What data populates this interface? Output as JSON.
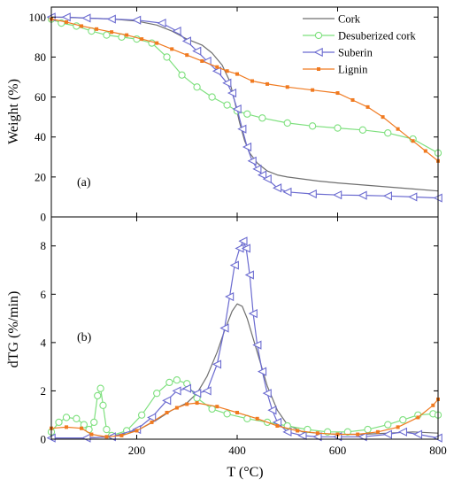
{
  "chart_data": [
    {
      "type": "line",
      "panel_label": "(a)",
      "ylabel": "Weight (%)",
      "xlim": [
        30,
        800
      ],
      "ylim": [
        0,
        105
      ],
      "yticks": [
        0,
        20,
        40,
        60,
        80,
        100
      ],
      "ytick_labels": [
        "0",
        "20",
        "40",
        "60",
        "80",
        "100"
      ],
      "legend_position": "top-right",
      "series": [
        {
          "name": "Cork",
          "color": "#6f6f6f",
          "marker": "none",
          "x": [
            30,
            60,
            100,
            150,
            200,
            240,
            270,
            300,
            330,
            350,
            370,
            385,
            395,
            405,
            415,
            425,
            440,
            460,
            480,
            500,
            530,
            560,
            600,
            650,
            700,
            750,
            800
          ],
          "y": [
            100,
            99.8,
            99.5,
            99,
            98,
            96,
            93,
            89,
            86,
            82,
            76,
            68,
            58,
            47,
            38,
            32,
            27,
            23,
            21,
            20,
            19,
            18,
            17,
            16,
            15,
            14,
            13
          ]
        },
        {
          "name": "Desuberized cork",
          "color": "#7ee07e",
          "marker": "circle",
          "x": [
            30,
            50,
            80,
            110,
            140,
            170,
            200,
            230,
            260,
            290,
            320,
            350,
            380,
            400,
            420,
            450,
            500,
            550,
            600,
            650,
            700,
            750,
            800
          ],
          "y": [
            99,
            97,
            95.5,
            93,
            91,
            90,
            89,
            87,
            80,
            71,
            65,
            60,
            56,
            53,
            51.5,
            49.5,
            47,
            45.5,
            44.5,
            43.5,
            42,
            39,
            32
          ]
        },
        {
          "name": "Suberin",
          "color": "#6b6bd0",
          "marker": "triangle-left",
          "x": [
            30,
            60,
            100,
            150,
            200,
            250,
            280,
            300,
            320,
            340,
            360,
            380,
            390,
            400,
            410,
            420,
            430,
            440,
            450,
            460,
            480,
            500,
            550,
            600,
            650,
            700,
            750,
            800
          ],
          "y": [
            100,
            100,
            99.5,
            99,
            98.5,
            97,
            93,
            88,
            83,
            78,
            73,
            67,
            62,
            54,
            44,
            35,
            28,
            24,
            21,
            19,
            14.5,
            12.5,
            11.5,
            11,
            10.8,
            10.5,
            10,
            9.5
          ]
        },
        {
          "name": "Lignin",
          "color": "#f07a20",
          "marker": "square",
          "x": [
            30,
            60,
            90,
            120,
            150,
            180,
            210,
            240,
            270,
            300,
            330,
            360,
            380,
            400,
            430,
            460,
            500,
            550,
            600,
            630,
            660,
            690,
            720,
            750,
            775,
            800
          ],
          "y": [
            99,
            97.5,
            95.5,
            94,
            92.5,
            91,
            89,
            87,
            84,
            81,
            78,
            75,
            73,
            71.5,
            68,
            66.5,
            65,
            63.5,
            62,
            58.5,
            55,
            50,
            44,
            38,
            33,
            28
          ]
        }
      ]
    },
    {
      "type": "line",
      "panel_label": "(b)",
      "xlabel": "T (°C)",
      "ylabel": "dTG (%/min)",
      "xlim": [
        30,
        800
      ],
      "ylim": [
        0,
        9.2
      ],
      "xticks": [
        200,
        400,
        600,
        800
      ],
      "xtick_labels": [
        "200",
        "400",
        "600",
        "800"
      ],
      "yticks": [
        0,
        2,
        4,
        6,
        8
      ],
      "ytick_labels": [
        "0",
        "2",
        "4",
        "6",
        "8"
      ],
      "series": [
        {
          "name": "Cork",
          "color": "#6f6f6f",
          "marker": "none",
          "x": [
            30,
            100,
            150,
            200,
            240,
            270,
            300,
            320,
            340,
            360,
            375,
            390,
            400,
            410,
            420,
            430,
            440,
            450,
            460,
            480,
            500,
            530,
            560,
            600,
            650,
            700,
            750,
            800
          ],
          "y": [
            0.05,
            0.05,
            0.1,
            0.35,
            0.8,
            1.2,
            1.5,
            1.9,
            2.6,
            3.6,
            4.5,
            5.3,
            5.6,
            5.5,
            5.0,
            4.3,
            3.6,
            2.9,
            2.2,
            1.2,
            0.6,
            0.3,
            0.25,
            0.2,
            0.2,
            0.25,
            0.3,
            0.25
          ]
        },
        {
          "name": "Desuberized cork",
          "color": "#7ee07e",
          "marker": "circle",
          "x": [
            30,
            45,
            60,
            80,
            95,
            105,
            115,
            122,
            128,
            133,
            140,
            150,
            180,
            210,
            240,
            265,
            280,
            300,
            320,
            350,
            380,
            420,
            460,
            500,
            540,
            580,
            620,
            660,
            700,
            730,
            760,
            790,
            800
          ],
          "y": [
            0.3,
            0.7,
            0.9,
            0.85,
            0.6,
            0.4,
            0.7,
            1.8,
            2.1,
            1.4,
            0.4,
            0.15,
            0.35,
            1.0,
            1.9,
            2.35,
            2.45,
            2.3,
            1.7,
            1.25,
            1.05,
            0.85,
            0.7,
            0.55,
            0.4,
            0.3,
            0.3,
            0.4,
            0.6,
            0.8,
            1.0,
            1.05,
            1.0
          ]
        },
        {
          "name": "Suberin",
          "color": "#6b6bd0",
          "marker": "triangle-left",
          "x": [
            30,
            100,
            150,
            200,
            230,
            260,
            280,
            300,
            320,
            340,
            360,
            375,
            385,
            395,
            405,
            412,
            418,
            425,
            432,
            440,
            450,
            460,
            470,
            480,
            500,
            530,
            560,
            600,
            650,
            700,
            730,
            760,
            800
          ],
          "y": [
            0.05,
            0.05,
            0.1,
            0.4,
            0.9,
            1.6,
            2.0,
            2.1,
            1.9,
            2.0,
            3.1,
            4.6,
            5.9,
            7.2,
            7.9,
            8.2,
            7.9,
            6.8,
            5.2,
            3.9,
            2.8,
            1.9,
            1.2,
            0.7,
            0.3,
            0.15,
            0.1,
            0.1,
            0.1,
            0.2,
            0.3,
            0.2,
            0.05
          ]
        },
        {
          "name": "Lignin",
          "color": "#f07a20",
          "marker": "square",
          "x": [
            30,
            60,
            90,
            110,
            140,
            170,
            200,
            230,
            260,
            280,
            300,
            320,
            360,
            400,
            440,
            480,
            520,
            560,
            600,
            640,
            680,
            720,
            760,
            790,
            800
          ],
          "y": [
            0.45,
            0.5,
            0.45,
            0.2,
            0.1,
            0.15,
            0.35,
            0.7,
            1.1,
            1.3,
            1.45,
            1.5,
            1.35,
            1.1,
            0.85,
            0.55,
            0.35,
            0.25,
            0.2,
            0.2,
            0.3,
            0.5,
            0.9,
            1.4,
            1.65
          ]
        }
      ]
    }
  ]
}
